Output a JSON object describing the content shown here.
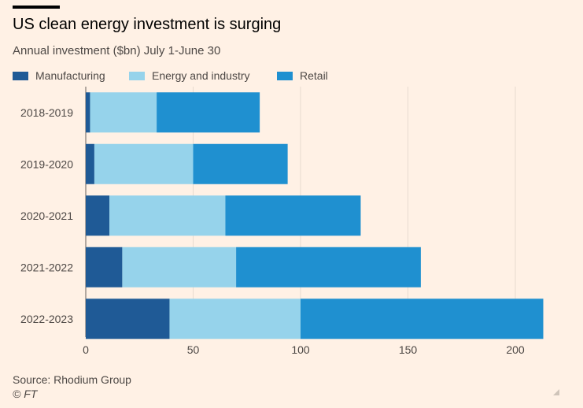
{
  "header": {
    "title": "US clean energy investment is surging",
    "subtitle": "Annual investment ($bn) July 1-June 30"
  },
  "footer": {
    "source": "Source: Rhodium Group",
    "credit": "© FT"
  },
  "chart_data": {
    "type": "bar",
    "orientation": "horizontal",
    "stacked": true,
    "title": "US clean energy investment is surging",
    "subtitle": "Annual investment ($bn) July 1-June 30",
    "xlabel": "",
    "ylabel": "",
    "xlim": [
      0,
      215
    ],
    "xticks": [
      0,
      50,
      100,
      150,
      200
    ],
    "grid": true,
    "legend_position": "top-left",
    "categories": [
      "2018-2019",
      "2019-2020",
      "2020-2021",
      "2021-2022",
      "2022-2023"
    ],
    "series": [
      {
        "name": "Manufacturing",
        "color": "#1f5a96",
        "values": [
          2,
          4,
          11,
          17,
          39
        ]
      },
      {
        "name": "Energy and industry",
        "color": "#96d3eb",
        "values": [
          31,
          46,
          54,
          53,
          61
        ]
      },
      {
        "name": "Retail",
        "color": "#1f90d0",
        "values": [
          48,
          44,
          63,
          86,
          113
        ]
      }
    ]
  }
}
